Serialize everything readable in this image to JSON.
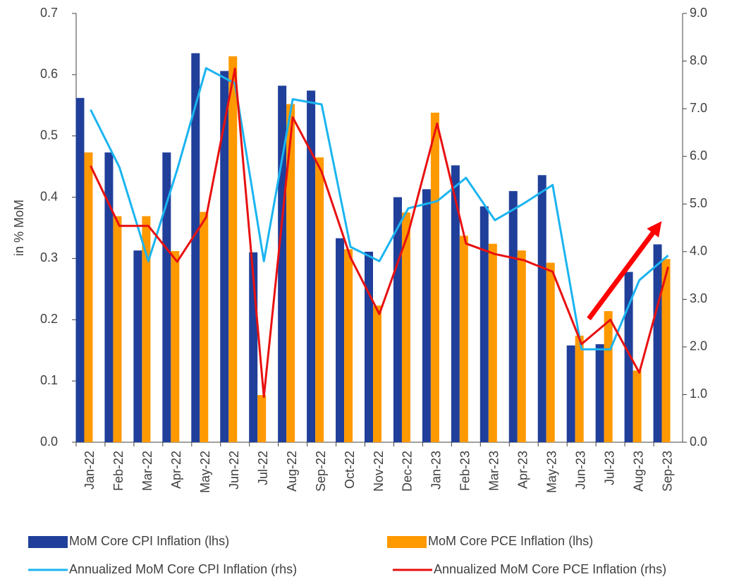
{
  "chart_data": {
    "type": "bar",
    "y_label": "in % MoM",
    "categories": [
      "Jan-22",
      "Feb-22",
      "Mar-22",
      "Apr-22",
      "May-22",
      "Jun-22",
      "Jul-22",
      "Aug-22",
      "Sep-22",
      "Oct-22",
      "Nov-22",
      "Dec-22",
      "Jan-23",
      "Feb-23",
      "Mar-23",
      "Apr-23",
      "May-23",
      "Jun-23",
      "Jul-23",
      "Aug-23",
      "Sep-23"
    ],
    "series": [
      {
        "name": "MoM Core CPI Inflation (lhs)",
        "type": "bar",
        "axis": "y",
        "color": "#203f9a",
        "values": [
          0.562,
          0.473,
          0.313,
          0.473,
          0.635,
          0.606,
          0.31,
          0.582,
          0.574,
          0.333,
          0.311,
          0.4,
          0.413,
          0.452,
          0.385,
          0.41,
          0.436,
          0.158,
          0.16,
          0.278,
          0.323
        ]
      },
      {
        "name": "MoM Core PCE Inflation (lhs)",
        "type": "bar",
        "axis": "y",
        "color": "#ff9900",
        "values": [
          0.473,
          0.369,
          0.369,
          0.312,
          0.376,
          0.63,
          0.077,
          0.552,
          0.465,
          0.315,
          0.223,
          0.375,
          0.538,
          0.337,
          0.324,
          0.313,
          0.293,
          0.174,
          0.214,
          0.117,
          0.299
        ]
      },
      {
        "name": "Annualized MoM Core CPI Inflation (rhs)",
        "type": "line",
        "axis": "y2",
        "color": "#1ab4f0",
        "values": [
          6.98,
          5.77,
          3.8,
          5.72,
          7.85,
          7.53,
          3.8,
          7.2,
          7.09,
          4.1,
          3.8,
          4.91,
          5.06,
          5.55,
          4.66,
          5.01,
          5.4,
          1.95,
          1.95,
          3.4,
          3.92
        ]
      },
      {
        "name": "Annualized MoM Core PCE Inflation (rhs)",
        "type": "line",
        "axis": "y2",
        "color": "#e81010",
        "values": [
          5.8,
          4.54,
          4.54,
          3.79,
          4.72,
          7.84,
          0.95,
          6.82,
          5.68,
          3.88,
          2.69,
          4.39,
          6.69,
          4.17,
          3.95,
          3.82,
          3.58,
          2.06,
          2.57,
          1.46,
          3.68
        ]
      }
    ],
    "ylim": [
      0,
      0.7
    ],
    "yticks": [
      {
        "value": 0,
        "label": "0.0"
      },
      0.1,
      0.2,
      0.3,
      0.4,
      0.5,
      0.6,
      0.7
    ],
    "y2lim": [
      0,
      9
    ],
    "y2ticks": [
      {
        "value": 0,
        "label": "0.0"
      },
      {
        "value": 1,
        "label": "1.0"
      },
      {
        "value": 2,
        "label": "2.0"
      },
      {
        "value": 3,
        "label": "3.0"
      },
      {
        "value": 4,
        "label": "4.0"
      },
      {
        "value": 5,
        "label": "5.0"
      },
      {
        "value": 6,
        "label": "6.0"
      },
      {
        "value": 7,
        "label": "7.0"
      },
      {
        "value": 8,
        "label": "8.0"
      },
      {
        "value": 9,
        "label": "9.0"
      }
    ],
    "grid": false
  }
}
